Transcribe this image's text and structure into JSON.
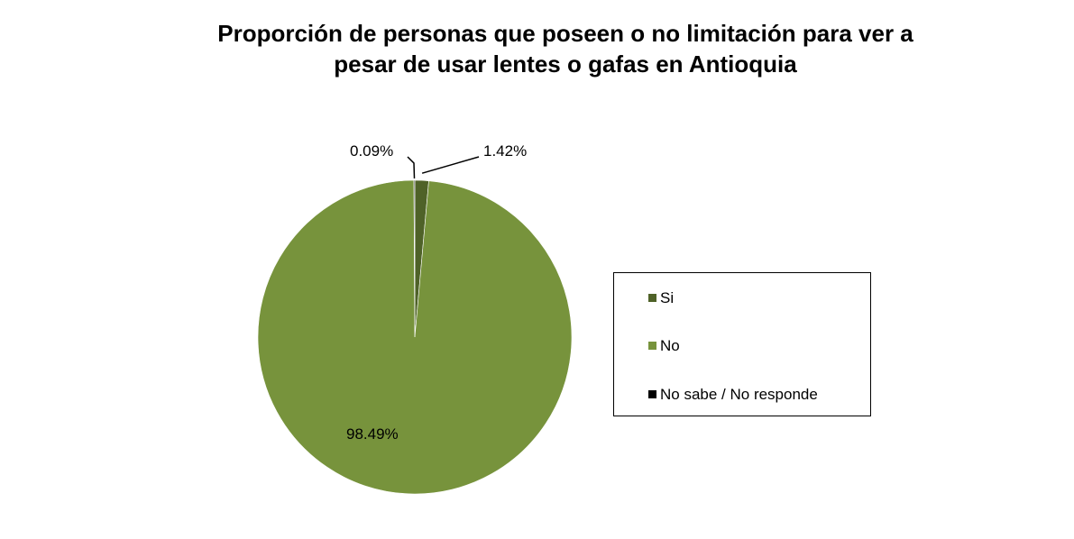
{
  "chart_data": {
    "type": "pie",
    "title_lines": [
      "Proporción de personas que poseen o no limitación para ver a",
      "pesar de usar lentes o gafas en Antioquia"
    ],
    "slices": [
      {
        "name": "Si",
        "value": 1.42,
        "label": "1.42%",
        "color": "#4f6228"
      },
      {
        "name": "No",
        "value": 98.49,
        "label": "98.49%",
        "color": "#77933c"
      },
      {
        "name": "No sabe / No responde",
        "value": 0.09,
        "label": "0.09%",
        "color": "#000000"
      }
    ],
    "legend": {
      "position": "right"
    }
  }
}
